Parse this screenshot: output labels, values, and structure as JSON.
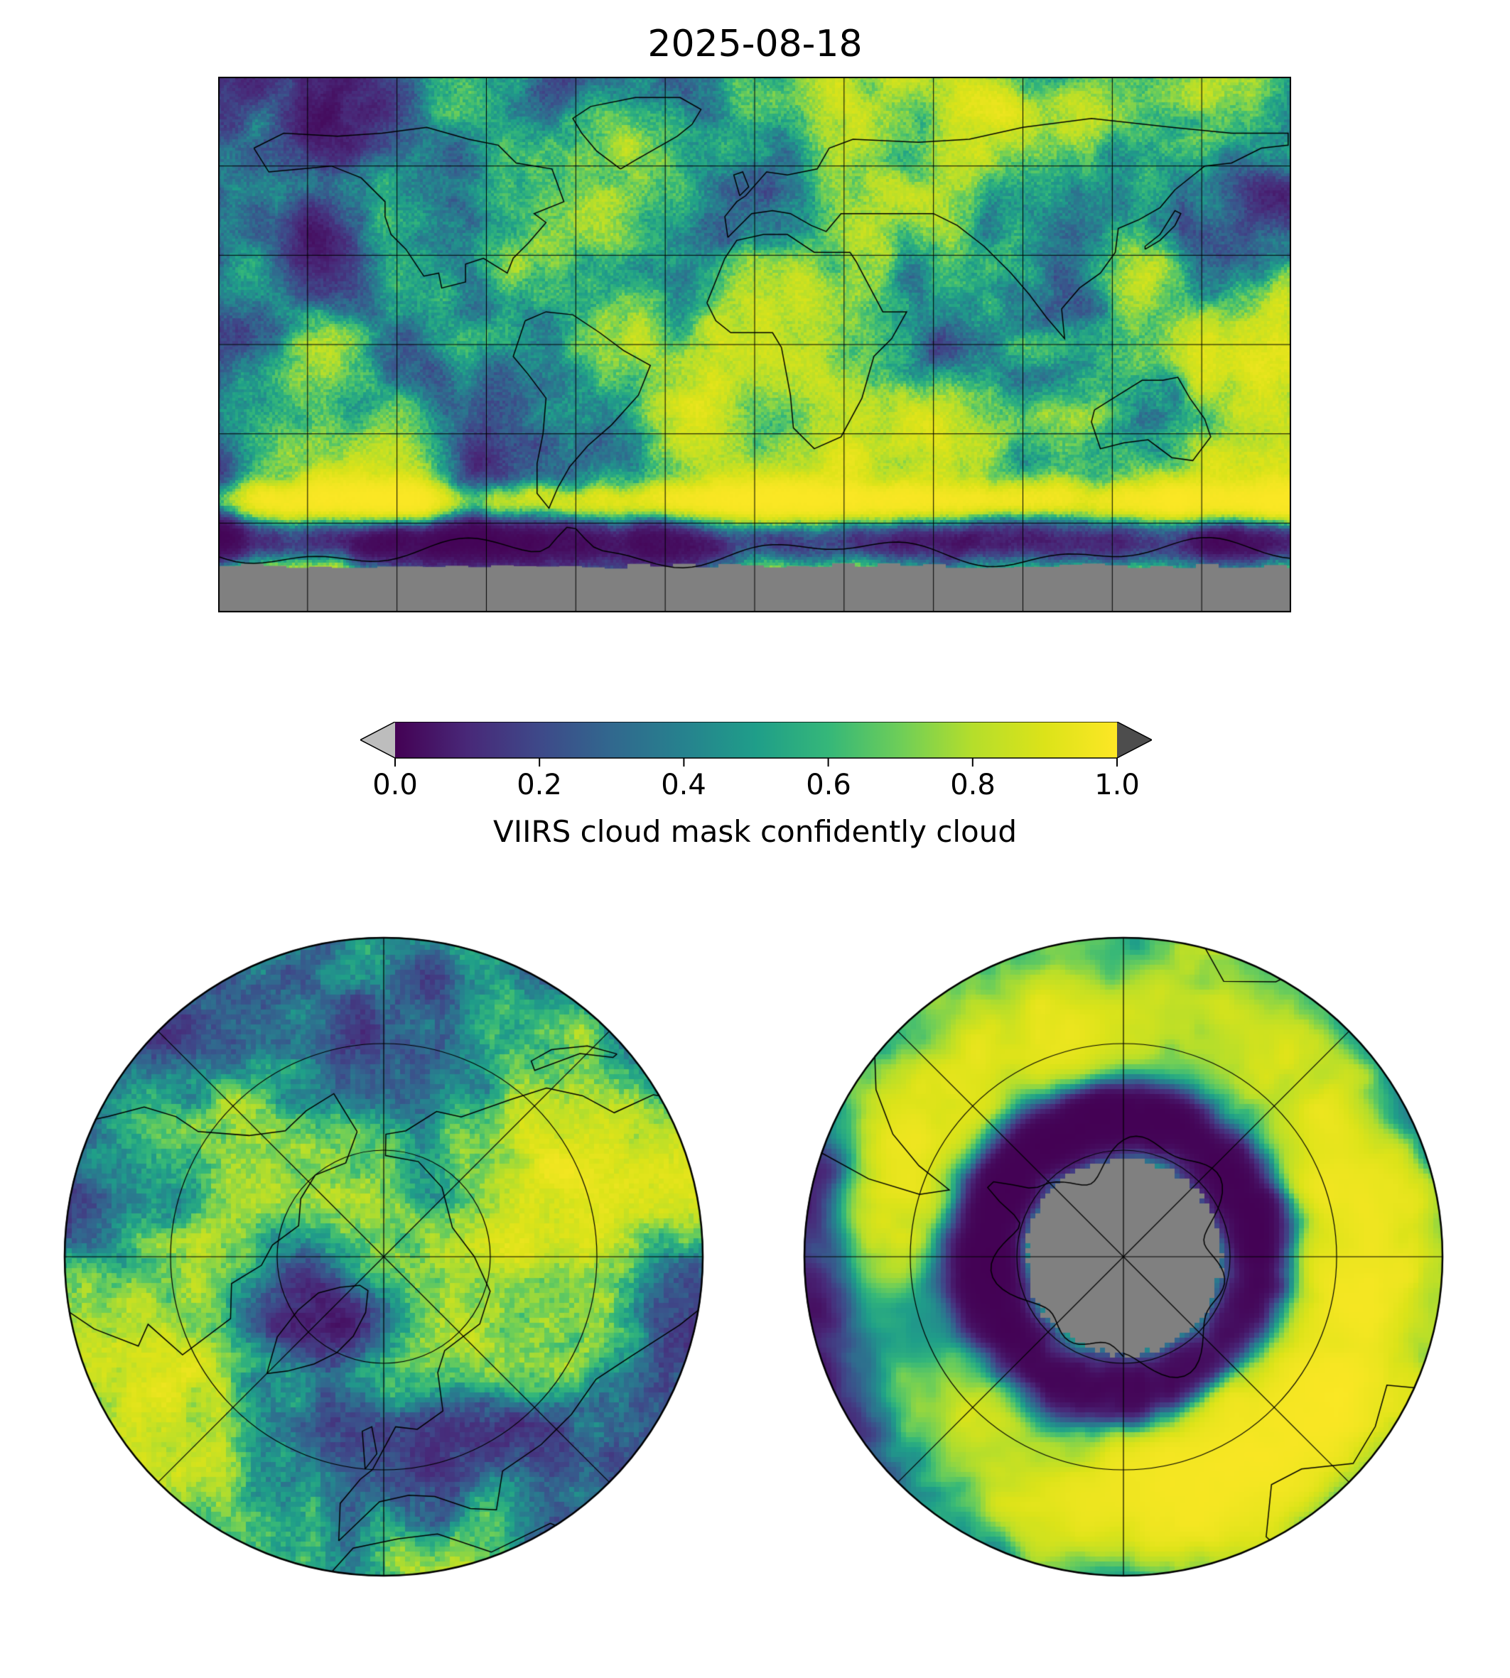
{
  "title": "2025-08-18",
  "colorbar": {
    "label": "VIIRS cloud mask confidently cloud",
    "ticks": [
      "0.0",
      "0.2",
      "0.4",
      "0.6",
      "0.8",
      "1.0"
    ],
    "min": 0.0,
    "max": 1.0,
    "colormap": "viridis",
    "under_color": "#bdbdbd",
    "over_color": "#4d4d4d"
  },
  "chart_data": {
    "type": "heatmap",
    "title": "2025-08-18",
    "variable": "VIIRS cloud mask confidently cloud",
    "colormap": "viridis",
    "value_range": [
      0.0,
      1.0
    ],
    "colorbar_ticks": [
      0.0,
      0.2,
      0.4,
      0.6,
      0.8,
      1.0
    ],
    "nodata_color": "#808080",
    "viridis_stops": [
      "#440154",
      "#482878",
      "#3e4989",
      "#31688e",
      "#26828e",
      "#1f9e89",
      "#35b779",
      "#6ece58",
      "#b5de2b",
      "#dce319",
      "#fde725"
    ],
    "panels": [
      {
        "name": "global-map",
        "projection": "equirectangular",
        "gridline_spacing_deg": 30,
        "nodata_region": "high southern latitudes (polar night, no retrieval)"
      },
      {
        "name": "north-polar-map",
        "projection": "north-polar-stereographic",
        "meridian_spacing_deg": 45
      },
      {
        "name": "south-polar-map",
        "projection": "south-polar-stereographic",
        "meridian_spacing_deg": 45,
        "nodata_region": "circular region around South Pole"
      }
    ]
  }
}
